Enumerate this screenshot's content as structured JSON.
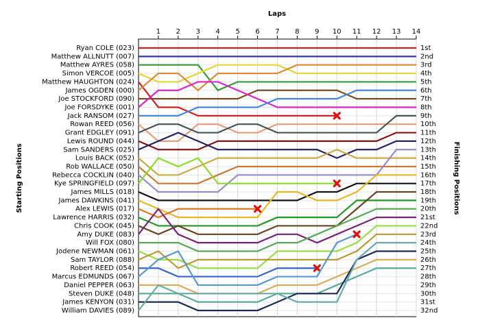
{
  "chart_data": {
    "type": "line",
    "title": "Laps",
    "y_label": "Starting Positions",
    "y2_label": "Finishing Positions",
    "x": [
      0,
      1,
      2,
      3,
      4,
      5,
      6,
      7,
      8,
      9,
      10,
      11,
      12,
      13,
      14
    ],
    "xlim": [
      0,
      14
    ],
    "xticks": [
      1,
      2,
      3,
      4,
      5,
      6,
      7,
      8,
      9,
      10,
      11,
      12,
      13,
      14
    ],
    "ylim": [
      1,
      32
    ],
    "grid": true,
    "finishing_labels": [
      "1st",
      "2nd",
      "3rd",
      "4th",
      "5th",
      "6th",
      "7th",
      "8th",
      "9th",
      "10th",
      "11th",
      "12th",
      "13th",
      "14th",
      "15th",
      "16th",
      "17th",
      "18th",
      "19th",
      "20th",
      "21st",
      "22nd",
      "23rd",
      "24th",
      "25th",
      "26th",
      "27th",
      "28th",
      "29th",
      "30th",
      "31st",
      "32nd"
    ],
    "series": [
      {
        "name": "Ryan COLE (023)",
        "color": "#cc2222",
        "values": [
          1,
          1,
          1,
          1,
          1,
          1,
          1,
          1,
          1,
          1,
          1,
          1,
          1,
          1,
          1
        ]
      },
      {
        "name": "Matthew ALLNUTT (007)",
        "color": "#3333aa",
        "values": [
          2,
          2,
          2,
          2,
          2,
          2,
          2,
          2,
          2,
          2,
          2,
          2,
          2,
          2,
          2
        ]
      },
      {
        "name": "Matthew AYRES (058)",
        "color": "#339933",
        "values": [
          3,
          3,
          3,
          3,
          6,
          5,
          5,
          5,
          5,
          5,
          5,
          5,
          5,
          5,
          5
        ]
      },
      {
        "name": "Simon VERCOE (005)",
        "color": "#e6d633",
        "values": [
          4,
          5,
          5,
          4,
          3,
          3,
          3,
          3,
          4,
          4,
          4,
          4,
          4,
          4,
          4
        ]
      },
      {
        "name": "Matthew HAUGHTON (024)",
        "color": "#cc2222",
        "values": [
          5,
          8,
          8,
          9,
          9,
          9,
          9,
          9,
          9,
          9,
          9,
          null,
          null,
          null,
          null
        ]
      },
      {
        "name": "James OGDEN (000)",
        "color": "#dd8833",
        "values": [
          6,
          4,
          4,
          6,
          4,
          4,
          4,
          4,
          3,
          3,
          3,
          3,
          3,
          3,
          3
        ]
      },
      {
        "name": "Joe STOCKFORD (090)",
        "color": "#7a4a22",
        "values": [
          7,
          7,
          7,
          7,
          7,
          7,
          6,
          6,
          6,
          6,
          6,
          7,
          7,
          7,
          7
        ]
      },
      {
        "name": "Joe FORSDYKE (001)",
        "color": "#dd22cc",
        "values": [
          8,
          6,
          6,
          5,
          5,
          6,
          7,
          8,
          8,
          8,
          8,
          8,
          8,
          8,
          8
        ]
      },
      {
        "name": "Jack RANSOM (027)",
        "color": "#4488dd",
        "values": [
          9,
          9,
          9,
          8,
          8,
          8,
          8,
          7,
          7,
          7,
          7,
          6,
          6,
          6,
          6
        ]
      },
      {
        "name": "Rowan REED (056)",
        "color": "#e89a7a",
        "values": [
          10,
          12,
          12,
          10,
          10,
          11,
          11,
          10,
          10,
          10,
          10,
          10,
          10,
          10,
          10
        ]
      },
      {
        "name": "Grant EDGLEY (091)",
        "color": "#445555",
        "values": [
          11,
          10,
          10,
          11,
          11,
          10,
          10,
          11,
          11,
          11,
          11,
          11,
          11,
          9,
          9
        ]
      },
      {
        "name": "Lewis ROUND (044)",
        "color": "#881111",
        "values": [
          12,
          13,
          13,
          13,
          12,
          12,
          12,
          12,
          12,
          12,
          12,
          12,
          12,
          11,
          11
        ]
      },
      {
        "name": "Sam SANDERS (025)",
        "color": "#222266",
        "values": [
          13,
          12,
          11,
          12,
          13,
          13,
          13,
          13,
          13,
          13,
          14,
          13,
          13,
          12,
          12
        ]
      },
      {
        "name": "Louis BACK (052)",
        "color": "#ccaa44",
        "values": [
          14,
          16,
          16,
          15,
          14,
          14,
          14,
          14,
          14,
          14,
          13,
          14,
          14,
          14,
          14
        ]
      },
      {
        "name": "Rob WALLACE (050)",
        "color": "#cc7733",
        "values": [
          15,
          17,
          17,
          17,
          16,
          15,
          15,
          15,
          15,
          15,
          15,
          15,
          15,
          15,
          15
        ]
      },
      {
        "name": "Rebecca COCKLIN (040)",
        "color": "#9988cc",
        "values": [
          16,
          18,
          18,
          18,
          18,
          16,
          16,
          16,
          16,
          16,
          16,
          16,
          16,
          13,
          13
        ]
      },
      {
        "name": "Kye SPRINGFIELD (097)",
        "color": "#88dd22",
        "values": [
          17,
          14,
          15,
          14,
          17,
          17,
          17,
          17,
          17,
          17,
          17,
          null,
          null,
          null,
          null
        ]
      },
      {
        "name": "James MILLS (018)",
        "color": "#111111",
        "values": [
          18,
          19,
          19,
          19,
          19,
          19,
          19,
          19,
          19,
          18,
          18,
          17,
          17,
          17,
          17
        ]
      },
      {
        "name": "James DAWKINS (041)",
        "color": "#e6b822",
        "values": [
          19,
          20,
          21,
          21,
          21,
          21,
          21,
          18,
          18,
          19,
          19,
          18,
          16,
          16,
          16
        ]
      },
      {
        "name": "Alex LEWIS (017)",
        "color": "#dd7722",
        "values": [
          20,
          21,
          20,
          20,
          20,
          20,
          20,
          null,
          null,
          null,
          null,
          null,
          null,
          null,
          null
        ]
      },
      {
        "name": "Lawrence HARRIS (032)",
        "color": "#229922",
        "values": [
          21,
          22,
          22,
          22,
          22,
          22,
          22,
          21,
          21,
          21,
          21,
          19,
          19,
          19,
          19
        ]
      },
      {
        "name": "Chris COOK (045)",
        "color": "#664422",
        "values": [
          22,
          23,
          22,
          23,
          23,
          23,
          23,
          22,
          22,
          22,
          22,
          20,
          18,
          18,
          18
        ]
      },
      {
        "name": "Amy DUKE (083)",
        "color": "#772277",
        "values": [
          23,
          20,
          23,
          24,
          24,
          24,
          24,
          23,
          23,
          24,
          23,
          22,
          21,
          21,
          21
        ]
      },
      {
        "name": "Will FOX (080)",
        "color": "#55aa55",
        "values": [
          24,
          24,
          24,
          25,
          25,
          25,
          25,
          24,
          24,
          23,
          22,
          21,
          20,
          20,
          20
        ]
      },
      {
        "name": "Jodene NEWMAN (061)",
        "color": "#99dd44",
        "values": [
          25,
          26,
          26,
          27,
          27,
          27,
          27,
          25,
          25,
          25,
          25,
          24,
          22,
          22,
          22
        ]
      },
      {
        "name": "Sam TAYLOR (088)",
        "color": "#bb9933",
        "values": [
          26,
          25,
          27,
          26,
          26,
          26,
          26,
          26,
          26,
          26,
          26,
          25,
          23,
          23,
          23
        ]
      },
      {
        "name": "Robert REED (054)",
        "color": "#3366cc",
        "values": [
          27,
          27,
          28,
          28,
          28,
          28,
          28,
          27,
          27,
          27,
          null,
          null,
          null,
          null,
          null
        ]
      },
      {
        "name": "Marcus EDMUNDS (067)",
        "color": "#5599cc",
        "values": [
          28,
          26,
          25,
          29,
          29,
          29,
          29,
          28,
          28,
          28,
          24,
          23,
          null,
          null,
          null
        ]
      },
      {
        "name": "Daniel PEPPER (063)",
        "color": "#ddaa55",
        "values": [
          29,
          29,
          29,
          30,
          30,
          30,
          30,
          29,
          29,
          29,
          28,
          27,
          26,
          26,
          26
        ]
      },
      {
        "name": "Steven DUKE (048)",
        "color": "#55aa99",
        "values": [
          30,
          30,
          30,
          31,
          31,
          31,
          31,
          30,
          30,
          30,
          29,
          28,
          27,
          27,
          27
        ]
      },
      {
        "name": "James KENYON (031)",
        "color": "#1a2a55",
        "values": [
          31,
          31,
          31,
          32,
          32,
          32,
          32,
          31,
          30,
          30,
          30,
          26,
          25,
          25,
          25
        ]
      },
      {
        "name": "William DAVIES (089)",
        "color": "#66aaaa",
        "values": [
          32,
          29,
          30,
          30,
          30,
          30,
          30,
          30,
          31,
          31,
          31,
          26,
          24,
          24,
          24
        ]
      }
    ]
  }
}
